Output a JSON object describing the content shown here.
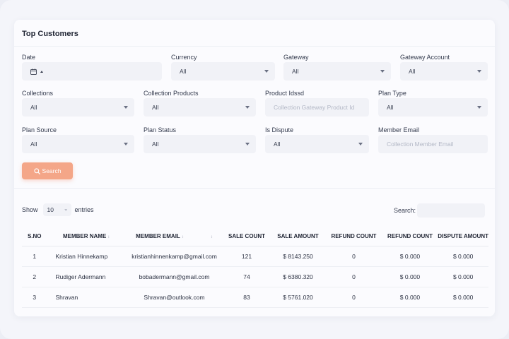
{
  "card": {
    "title": "Top Customers"
  },
  "filters": {
    "date": {
      "label": "Date",
      "value": ""
    },
    "currency": {
      "label": "Currency",
      "value": "All"
    },
    "gateway": {
      "label": "Gateway",
      "value": "All"
    },
    "gateway_account": {
      "label": "Gateway Account",
      "value": "All"
    },
    "collections": {
      "label": "Collections",
      "value": "All"
    },
    "collection_products": {
      "label": "Collection Products",
      "value": "All"
    },
    "product_idssd": {
      "label": "Product Idssd",
      "placeholder": "Collection Gateway Product Id"
    },
    "plan_type": {
      "label": "Plan Type",
      "value": "All"
    },
    "plan_source": {
      "label": "Plan Source",
      "value": "All"
    },
    "plan_status": {
      "label": "Plan Status",
      "value": "All"
    },
    "is_dispute": {
      "label": "Is Dispute",
      "value": "All"
    },
    "member_email": {
      "label": "Member Email",
      "placeholder": "Collection Member Email"
    }
  },
  "search_button": {
    "label": "Search",
    "icon": "search-icon"
  },
  "table_controls": {
    "show_label": "Show",
    "entries_value": "10",
    "entries_label": "entries",
    "search_label": "Search:"
  },
  "table": {
    "columns": [
      "S.NO",
      "MEMBER NAME",
      "MEMBER EMAIL",
      "SALE COUNT",
      "SALE AMOUNT",
      "REFUND COUNT",
      "REFUND COUNT",
      "DISPUTE AMOUNT"
    ],
    "rows": [
      [
        "1",
        "Kristian Hinnekamp",
        "kristianhinnenkamp@gmail.com",
        "121",
        "$ 8143.250",
        "0",
        "$ 0.000",
        "$ 0.000"
      ],
      [
        "2",
        "Rudiger Adermann",
        "bobadermann@gmail.com",
        "74",
        "$ 6380.320",
        "0",
        "$ 0.000",
        "$ 0.000"
      ],
      [
        "3",
        "Shravan",
        "Shravan@outlook.com",
        "83",
        "$ 5761.020",
        "0",
        "$ 0.000",
        "$ 0.000"
      ]
    ]
  },
  "colors": {
    "accent": "#f4a688",
    "field_bg": "#f1f2f7",
    "card_bg": "#fbfbfe"
  }
}
